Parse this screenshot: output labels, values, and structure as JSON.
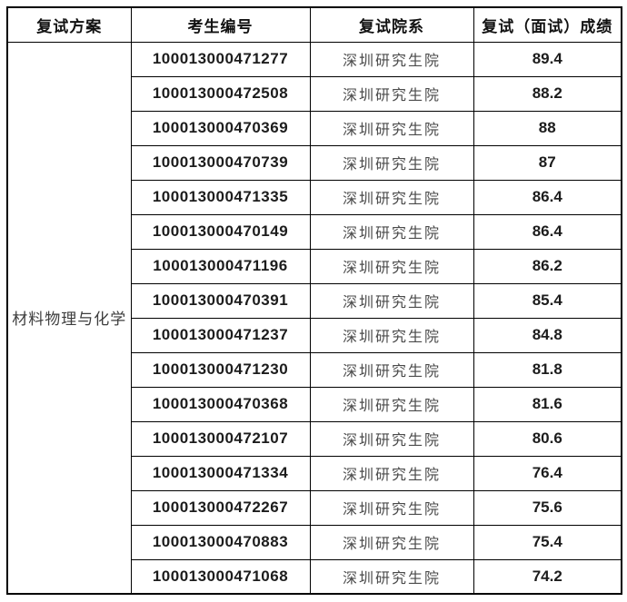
{
  "table": {
    "headers": [
      "复试方案",
      "考生编号",
      "复试院系",
      "复试（面试）成绩"
    ],
    "plan_name": "材料物理与化学",
    "rows": [
      {
        "candidate_id": "100013000471277",
        "department": "深圳研究生院",
        "score": "89.4"
      },
      {
        "candidate_id": "100013000472508",
        "department": "深圳研究生院",
        "score": "88.2"
      },
      {
        "candidate_id": "100013000470369",
        "department": "深圳研究生院",
        "score": "88"
      },
      {
        "candidate_id": "100013000470739",
        "department": "深圳研究生院",
        "score": "87"
      },
      {
        "candidate_id": "100013000471335",
        "department": "深圳研究生院",
        "score": "86.4"
      },
      {
        "candidate_id": "100013000470149",
        "department": "深圳研究生院",
        "score": "86.4"
      },
      {
        "candidate_id": "100013000471196",
        "department": "深圳研究生院",
        "score": "86.2"
      },
      {
        "candidate_id": "100013000470391",
        "department": "深圳研究生院",
        "score": "85.4"
      },
      {
        "candidate_id": "100013000471237",
        "department": "深圳研究生院",
        "score": "84.8"
      },
      {
        "candidate_id": "100013000471230",
        "department": "深圳研究生院",
        "score": "81.8"
      },
      {
        "candidate_id": "100013000470368",
        "department": "深圳研究生院",
        "score": "81.6"
      },
      {
        "candidate_id": "100013000472107",
        "department": "深圳研究生院",
        "score": "80.6"
      },
      {
        "candidate_id": "100013000471334",
        "department": "深圳研究生院",
        "score": "76.4"
      },
      {
        "candidate_id": "100013000472267",
        "department": "深圳研究生院",
        "score": "75.6"
      },
      {
        "candidate_id": "100013000470883",
        "department": "深圳研究生院",
        "score": "75.4"
      },
      {
        "candidate_id": "100013000471068",
        "department": "深圳研究生院",
        "score": "74.2"
      }
    ]
  },
  "colors": {
    "border": "#000000",
    "background": "#ffffff",
    "text_primary": "#1c1c1c",
    "text_secondary": "#4a4a4a"
  }
}
